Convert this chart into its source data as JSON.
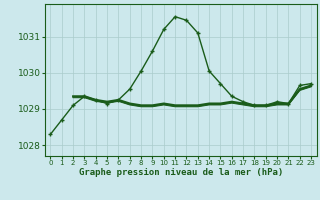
{
  "title": "Graphe pression niveau de la mer (hPa)",
  "background_color": "#cce8ec",
  "grid_color": "#aacccc",
  "line_color": "#1a5c1a",
  "xlim": [
    -0.5,
    23.5
  ],
  "ylim": [
    1027.7,
    1031.9
  ],
  "yticks": [
    1028,
    1029,
    1030,
    1031
  ],
  "x_labels": [
    "0",
    "1",
    "2",
    "3",
    "4",
    "5",
    "6",
    "7",
    "8",
    "9",
    "10",
    "11",
    "12",
    "13",
    "14",
    "15",
    "16",
    "17",
    "18",
    "19",
    "20",
    "21",
    "22",
    "23"
  ],
  "main_series": {
    "x": [
      0,
      1,
      2,
      3,
      4,
      5,
      6,
      7,
      8,
      9,
      10,
      11,
      12,
      13,
      14,
      15,
      16,
      17,
      18,
      19,
      20,
      21,
      22,
      23
    ],
    "y": [
      1028.3,
      1028.7,
      1029.1,
      1029.35,
      1029.25,
      1029.15,
      1029.25,
      1029.55,
      1030.05,
      1030.6,
      1031.2,
      1031.55,
      1031.45,
      1031.1,
      1030.05,
      1029.7,
      1029.35,
      1029.2,
      1029.1,
      1029.1,
      1029.2,
      1029.15,
      1029.65,
      1029.7
    ]
  },
  "flat_lines": [
    {
      "x": [
        2,
        3,
        4,
        5,
        6,
        7,
        8,
        9,
        10,
        11,
        12,
        13,
        14,
        15,
        16,
        17,
        18,
        19,
        20,
        21,
        22,
        23
      ],
      "y": [
        1029.35,
        1029.35,
        1029.25,
        1029.2,
        1029.25,
        1029.15,
        1029.1,
        1029.1,
        1029.15,
        1029.1,
        1029.1,
        1029.1,
        1029.15,
        1029.15,
        1029.2,
        1029.15,
        1029.1,
        1029.1,
        1029.15,
        1029.15,
        1029.55,
        1029.65
      ],
      "linewidth": 1.5
    },
    {
      "x": [
        2,
        3,
        4,
        5,
        6,
        7,
        8,
        9,
        10,
        11,
        12,
        13,
        14,
        15,
        16,
        17,
        18,
        19,
        20,
        21,
        22,
        23
      ],
      "y": [
        1029.33,
        1029.33,
        1029.23,
        1029.18,
        1029.23,
        1029.13,
        1029.08,
        1029.08,
        1029.13,
        1029.08,
        1029.08,
        1029.08,
        1029.13,
        1029.13,
        1029.18,
        1029.13,
        1029.08,
        1029.08,
        1029.13,
        1029.13,
        1029.53,
        1029.63
      ],
      "linewidth": 1.0
    },
    {
      "x": [
        2,
        3,
        4,
        5,
        6,
        7,
        8,
        9,
        10,
        11,
        12,
        13,
        14,
        15,
        16,
        17,
        18,
        19,
        20,
        21,
        22,
        23
      ],
      "y": [
        1029.31,
        1029.31,
        1029.21,
        1029.16,
        1029.21,
        1029.11,
        1029.06,
        1029.06,
        1029.11,
        1029.06,
        1029.06,
        1029.06,
        1029.11,
        1029.11,
        1029.16,
        1029.11,
        1029.06,
        1029.06,
        1029.11,
        1029.11,
        1029.51,
        1029.61
      ],
      "linewidth": 0.7
    }
  ]
}
